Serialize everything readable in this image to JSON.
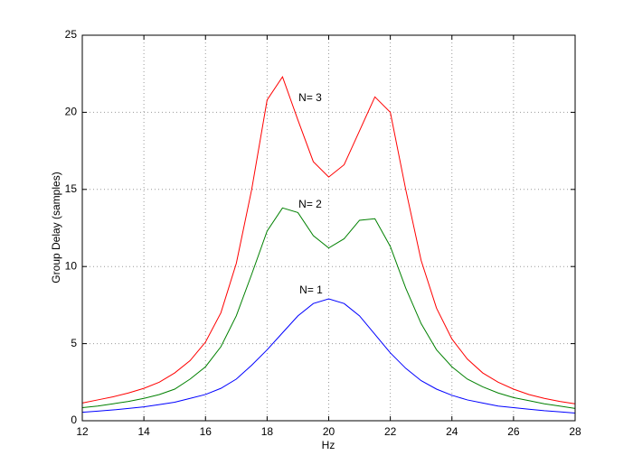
{
  "chart_data": {
    "type": "line",
    "xlabel": "Hz",
    "ylabel": "Group Delay (samples)",
    "x": [
      12,
      12.5,
      13,
      13.5,
      14,
      14.5,
      15,
      15.5,
      16,
      16.5,
      17,
      17.5,
      18,
      18.5,
      19,
      19.5,
      20,
      20.5,
      21,
      21.5,
      22,
      22.5,
      23,
      23.5,
      24,
      24.5,
      25,
      25.5,
      26,
      26.5,
      27,
      27.5,
      28
    ],
    "series": [
      {
        "name": "N= 3",
        "color": "#ff0000",
        "values": [
          1.15,
          1.35,
          1.55,
          1.8,
          2.1,
          2.5,
          3.1,
          3.9,
          5.1,
          7.0,
          10.2,
          15.0,
          20.8,
          22.3,
          19.5,
          16.8,
          15.8,
          16.6,
          18.8,
          21.0,
          20.0,
          15.0,
          10.4,
          7.3,
          5.3,
          4.0,
          3.1,
          2.5,
          2.05,
          1.7,
          1.45,
          1.25,
          1.1
        ]
      },
      {
        "name": "N= 2",
        "color": "#008000",
        "values": [
          0.85,
          0.95,
          1.1,
          1.25,
          1.45,
          1.7,
          2.05,
          2.7,
          3.5,
          4.8,
          6.8,
          9.5,
          12.3,
          13.8,
          13.5,
          12.0,
          11.2,
          11.8,
          13.0,
          13.1,
          11.3,
          8.6,
          6.3,
          4.6,
          3.5,
          2.7,
          2.2,
          1.8,
          1.5,
          1.3,
          1.1,
          0.95,
          0.8
        ]
      },
      {
        "name": "N= 1",
        "color": "#0000ff",
        "values": [
          0.55,
          0.62,
          0.7,
          0.8,
          0.9,
          1.05,
          1.2,
          1.45,
          1.7,
          2.1,
          2.7,
          3.6,
          4.6,
          5.7,
          6.8,
          7.6,
          7.9,
          7.6,
          6.8,
          5.6,
          4.4,
          3.4,
          2.6,
          2.05,
          1.65,
          1.35,
          1.15,
          0.95,
          0.85,
          0.75,
          0.65,
          0.58,
          0.5
        ]
      }
    ],
    "xlim": [
      12,
      28
    ],
    "xticks": [
      12,
      14,
      16,
      18,
      20,
      22,
      24,
      26,
      28
    ],
    "ylim": [
      0,
      25
    ],
    "yticks": [
      0,
      5,
      10,
      15,
      20,
      25
    ],
    "grid": true
  }
}
